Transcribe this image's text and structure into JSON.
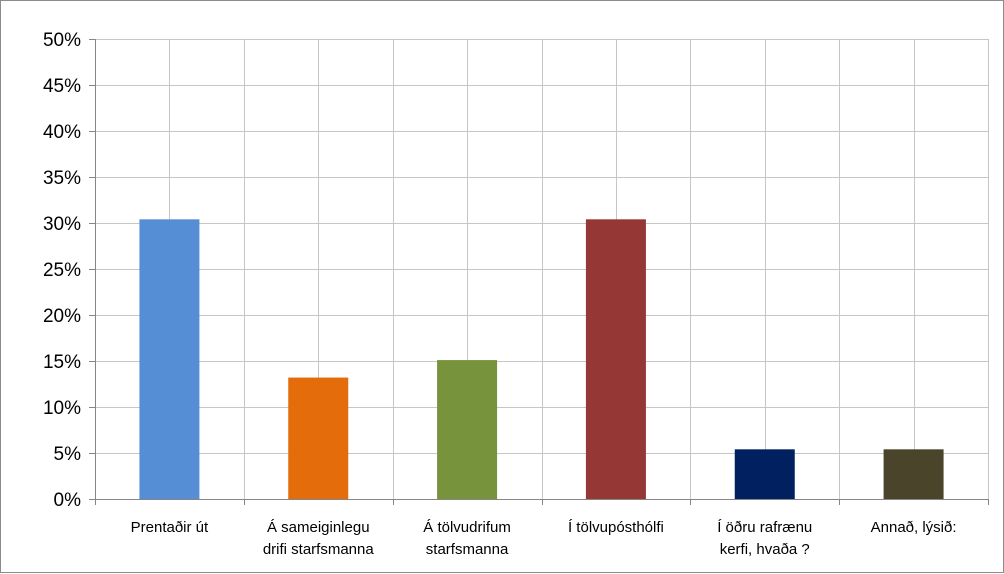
{
  "chart_data": {
    "type": "bar",
    "title": "",
    "xlabel": "",
    "ylabel": "",
    "categories": [
      [
        "Prentaðir út"
      ],
      [
        "Á sameiginlegu",
        "drifi starfsmanna"
      ],
      [
        "Á tölvudrifum",
        "starfsmanna"
      ],
      [
        "Í tölvupósthólfi"
      ],
      [
        "Í öðru rafrænu",
        "kerfi, hvaða ?"
      ],
      [
        "Annað, lýsið:"
      ]
    ],
    "values": [
      30.4,
      13.2,
      15.1,
      30.4,
      5.4,
      5.4
    ],
    "colors": [
      "#558ed5",
      "#e46c0a",
      "#77933c",
      "#953735",
      "#002060",
      "#4a452a"
    ],
    "ylim": [
      0,
      50
    ],
    "yticks": [
      0,
      5,
      10,
      15,
      20,
      25,
      30,
      35,
      40,
      45,
      50
    ],
    "ytick_labels": [
      "0%",
      "5%",
      "10%",
      "15%",
      "20%",
      "25%",
      "30%",
      "35%",
      "40%",
      "45%",
      "50%"
    ],
    "grid": true,
    "legend": "none"
  }
}
